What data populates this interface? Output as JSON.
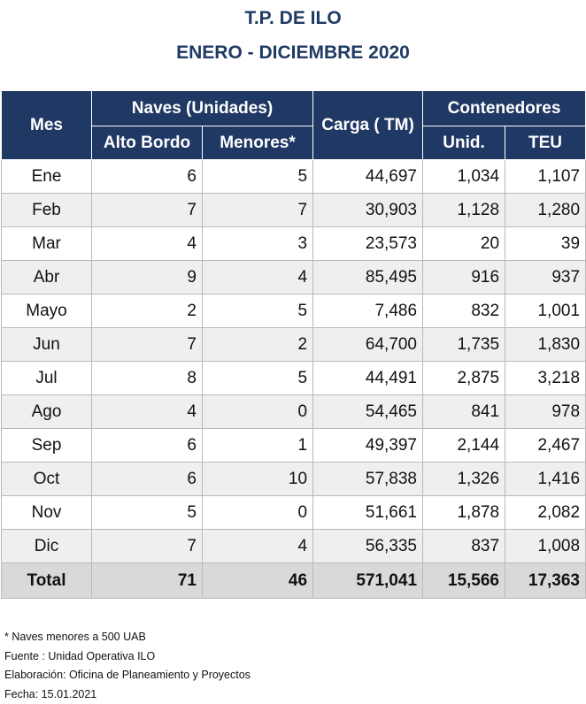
{
  "title_line1": "T.P. DE ILO",
  "title_line2": "ENERO - DICIEMBRE 2020",
  "headers": {
    "mes": "Mes",
    "naves": "Naves (Unidades)",
    "alto_bordo": "Alto Bordo",
    "menores": "Menores*",
    "carga": "Carga ( TM)",
    "contenedores": "Contenedores",
    "unid": "Unid.",
    "teu": "TEU"
  },
  "rows": [
    {
      "mes": "Ene",
      "alto": "6",
      "menores": "5",
      "carga": "44,697",
      "unid": "1,034",
      "teu": "1,107"
    },
    {
      "mes": "Feb",
      "alto": "7",
      "menores": "7",
      "carga": "30,903",
      "unid": "1,128",
      "teu": "1,280"
    },
    {
      "mes": "Mar",
      "alto": "4",
      "menores": "3",
      "carga": "23,573",
      "unid": "20",
      "teu": "39"
    },
    {
      "mes": "Abr",
      "alto": "9",
      "menores": "4",
      "carga": "85,495",
      "unid": "916",
      "teu": "937"
    },
    {
      "mes": "Mayo",
      "alto": "2",
      "menores": "5",
      "carga": "7,486",
      "unid": "832",
      "teu": "1,001"
    },
    {
      "mes": "Jun",
      "alto": "7",
      "menores": "2",
      "carga": "64,700",
      "unid": "1,735",
      "teu": "1,830"
    },
    {
      "mes": "Jul",
      "alto": "8",
      "menores": "5",
      "carga": "44,491",
      "unid": "2,875",
      "teu": "3,218"
    },
    {
      "mes": "Ago",
      "alto": "4",
      "menores": "0",
      "carga": "54,465",
      "unid": "841",
      "teu": "978"
    },
    {
      "mes": "Sep",
      "alto": "6",
      "menores": "1",
      "carga": "49,397",
      "unid": "2,144",
      "teu": "2,467"
    },
    {
      "mes": "Oct",
      "alto": "6",
      "menores": "10",
      "carga": "57,838",
      "unid": "1,326",
      "teu": "1,416"
    },
    {
      "mes": "Nov",
      "alto": "5",
      "menores": "0",
      "carga": "51,661",
      "unid": "1,878",
      "teu": "2,082"
    },
    {
      "mes": "Dic",
      "alto": "7",
      "menores": "4",
      "carga": "56,335",
      "unid": "837",
      "teu": "1,008"
    }
  ],
  "total": {
    "mes": "Total",
    "alto": "71",
    "menores": "46",
    "carga": "571,041",
    "unid": "15,566",
    "teu": "17,363"
  },
  "notes": [
    "* Naves menores a 500 UAB",
    "Fuente : Unidad Operativa ILO",
    "Elaboración: Oficina de Planeamiento y Proyectos",
    "Fecha: 15.01.2021"
  ]
}
